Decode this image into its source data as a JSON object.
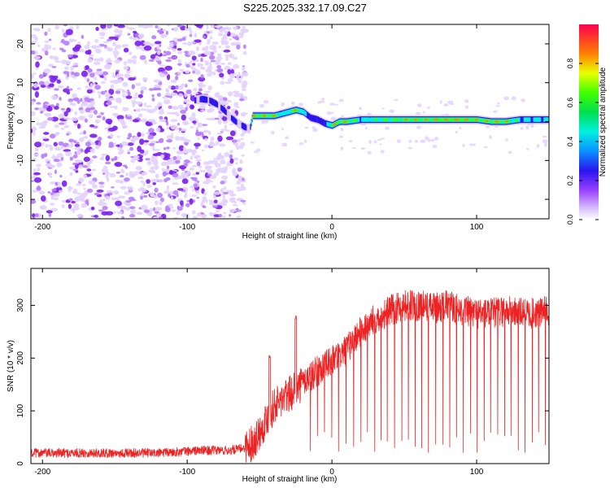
{
  "title": "S225.2025.332.17.09.C27",
  "chart_data": [
    {
      "type": "heatmap",
      "xlabel": "Height of straight line (km)",
      "ylabel": "Frequency (Hz)",
      "xlim": [
        -208,
        150
      ],
      "ylim": [
        -25,
        25
      ],
      "xticks": [
        -200,
        -100,
        0,
        100
      ],
      "yticks": [
        -20,
        -10,
        0,
        10,
        20
      ],
      "colorbar": {
        "label": "Normalized spectral amplitude",
        "range": [
          0,
          1
        ],
        "ticks": [
          0.0,
          0.2,
          0.4,
          0.6,
          0.8
        ],
        "tick_labels": [
          "0.0",
          "0.2",
          "0.4",
          "0.6",
          "0.8"
        ]
      },
      "noise_region_x": [
        -208,
        -60
      ],
      "tone_track": {
        "x": [
          -95,
          -90,
          -85,
          -80,
          -75,
          -70,
          -65,
          -60,
          -57,
          -55,
          -50,
          -45,
          -40,
          -35,
          -30,
          -25,
          -20,
          -15,
          -10,
          -5,
          0,
          5,
          10,
          20,
          30,
          40,
          50,
          60,
          70,
          80,
          90,
          100,
          110,
          120,
          130,
          140,
          150
        ],
        "freq": [
          5.5,
          5.8,
          5.5,
          4.5,
          3,
          1,
          -0.5,
          -1.5,
          -2,
          1.5,
          1.5,
          1.5,
          1.5,
          2,
          2.5,
          3,
          2.5,
          1,
          0.5,
          -0.5,
          -1,
          0,
          0,
          0.5,
          0.5,
          0.5,
          0.5,
          0.5,
          0.5,
          0.5,
          0.5,
          0.5,
          0,
          0,
          0.5,
          0.5,
          0.5
        ],
        "amplitude": [
          0.3,
          0.35,
          0.35,
          0.35,
          0.3,
          0.3,
          0.3,
          0.3,
          0.25,
          0.9,
          0.9,
          0.9,
          0.9,
          0.55,
          0.75,
          0.9,
          0.6,
          0.4,
          0.4,
          0.4,
          0.9,
          0.9,
          0.9,
          0.6,
          0.7,
          0.8,
          0.9,
          0.9,
          0.9,
          0.95,
          0.95,
          0.9,
          0.9,
          0.9,
          0.6,
          0.6,
          0.6
        ]
      }
    },
    {
      "type": "line",
      "xlabel": "Height of straight line (km)",
      "ylabel": "SNR (10 * v/v)",
      "xlim": [
        -208,
        150
      ],
      "ylim": [
        0,
        370
      ],
      "xticks": [
        -200,
        -100,
        0,
        100
      ],
      "yticks": [
        0,
        100,
        200,
        300
      ],
      "series": [
        {
          "name": "SNR",
          "color": "#ee2222",
          "x": [
            -208,
            -180,
            -150,
            -120,
            -90,
            -70,
            -60,
            -55,
            -50,
            -45,
            -40,
            -35,
            -30,
            -25,
            -20,
            -15,
            -10,
            -5,
            0,
            5,
            10,
            15,
            20,
            30,
            40,
            50,
            60,
            70,
            80,
            90,
            100,
            110,
            120,
            130,
            140,
            150
          ],
          "y": [
            20,
            20,
            20,
            20,
            25,
            25,
            30,
            40,
            60,
            85,
            110,
            120,
            130,
            140,
            155,
            165,
            175,
            185,
            195,
            205,
            215,
            235,
            250,
            275,
            290,
            300,
            300,
            295,
            300,
            290,
            285,
            285,
            290,
            285,
            285,
            290
          ]
        }
      ],
      "dropouts": {
        "x_start": -15,
        "x_end": 148,
        "spacing": 4.8,
        "min_y": 20
      },
      "spikes": [
        {
          "x": -43,
          "y": 205
        },
        {
          "x": -25,
          "y": 280
        }
      ]
    }
  ]
}
